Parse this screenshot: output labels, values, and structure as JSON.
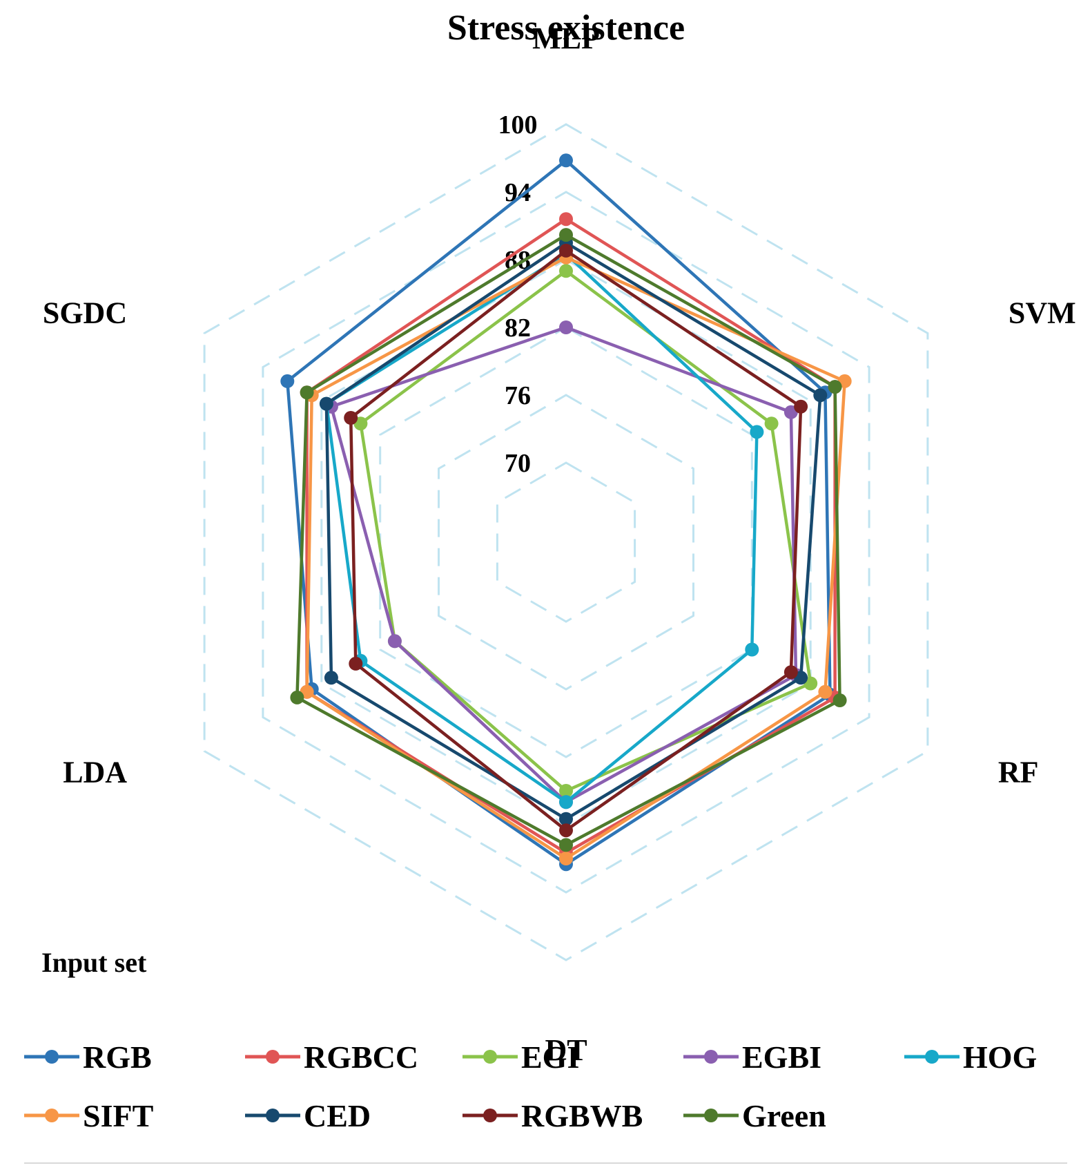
{
  "chart_data": {
    "type": "radar",
    "title": "Stress existence",
    "axes": [
      "MLP",
      "SVM",
      "RF",
      "DT",
      "LDA",
      "SGDC"
    ],
    "rticks": [
      70,
      76,
      82,
      88,
      94,
      100
    ],
    "rlim": [
      70,
      100
    ],
    "grid": "dashed hexagons",
    "legend_title": "Input set",
    "legend_position": "bottom",
    "series": [
      {
        "name": "RGB",
        "color": "#2e75b6",
        "values": [
          96.8,
          89.5,
          90.0,
          91.5,
          89.0,
          91.5
        ]
      },
      {
        "name": "RGBCC",
        "color": "#e05555",
        "values": [
          91.6,
          90.5,
          90.5,
          90.5,
          89.5,
          89.5
        ]
      },
      {
        "name": "EGI",
        "color": "#8bc34a",
        "values": [
          87.0,
          84.0,
          88.0,
          85.0,
          80.5,
          84.0
        ]
      },
      {
        "name": "EGBI",
        "color": "#8a5fb0",
        "values": [
          82.0,
          86.0,
          86.5,
          86.0,
          80.5,
          87.0
        ]
      },
      {
        "name": "HOG",
        "color": "#17a8c9",
        "values": [
          88.5,
          82.5,
          82.0,
          86.0,
          84.0,
          87.5
        ]
      },
      {
        "name": "SIFT",
        "color": "#f79646",
        "values": [
          88.2,
          91.5,
          89.5,
          91.0,
          89.5,
          89.0
        ]
      },
      {
        "name": "CED",
        "color": "#17496e",
        "values": [
          89.5,
          89.0,
          87.0,
          87.5,
          87.0,
          87.5
        ]
      },
      {
        "name": "RGBWB",
        "color": "#7b2020",
        "values": [
          88.8,
          87.0,
          86.0,
          88.5,
          84.5,
          85.0
        ]
      },
      {
        "name": "Green",
        "color": "#4e7a2c",
        "values": [
          90.2,
          90.5,
          91.0,
          89.8,
          90.5,
          89.5
        ]
      }
    ]
  }
}
